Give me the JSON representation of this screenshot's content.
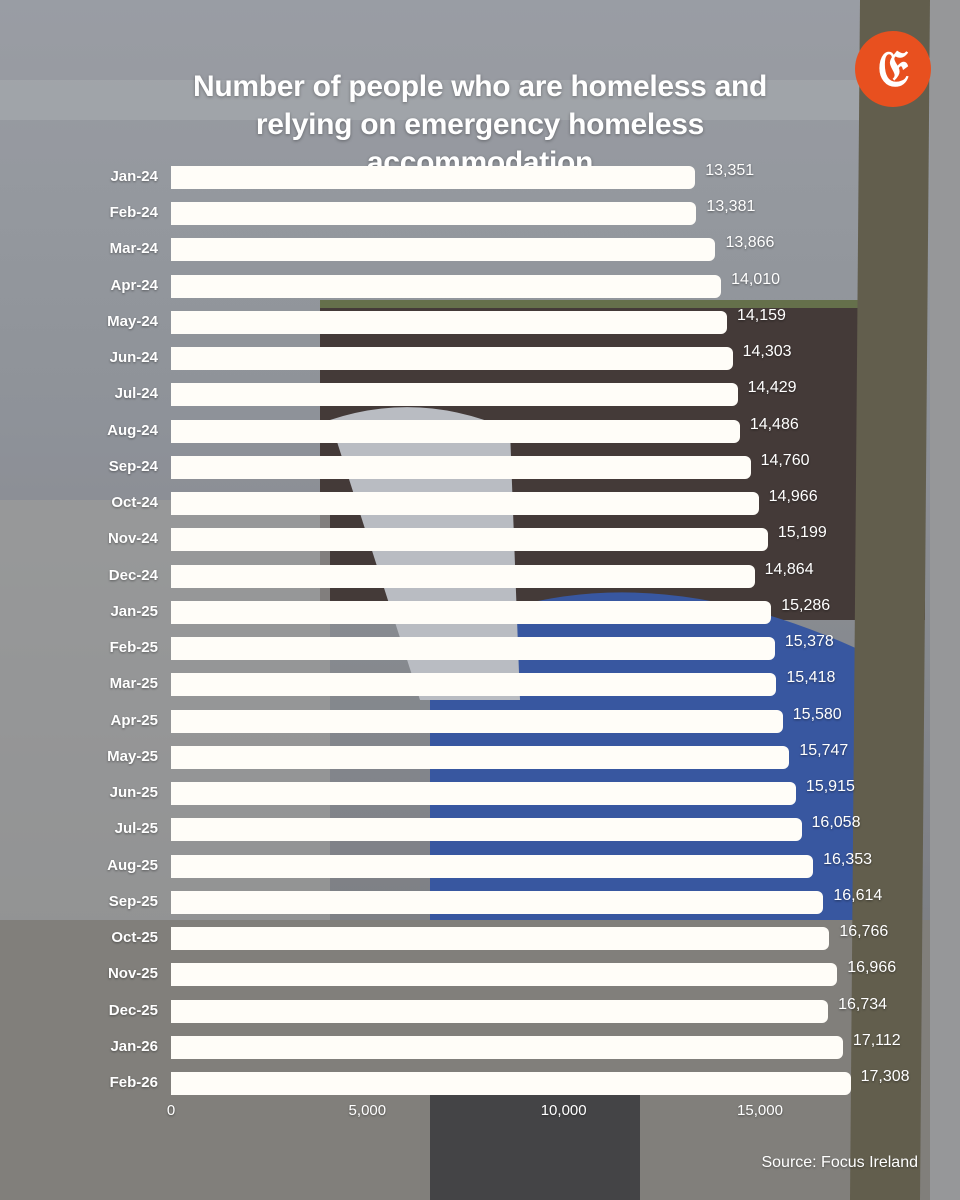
{
  "chart_data": {
    "type": "bar",
    "orientation": "horizontal",
    "title": "Number of people who are homeless and relying on emergency homeless accommodation",
    "categories": [
      "Jan-24",
      "Feb-24",
      "Mar-24",
      "Apr-24",
      "May-24",
      "Jun-24",
      "Jul-24",
      "Aug-24",
      "Sep-24",
      "Oct-24",
      "Nov-24",
      "Dec-24",
      "Jan-25",
      "Feb-25",
      "Mar-25",
      "Apr-25",
      "May-25",
      "Jun-25",
      "Jul-25",
      "Aug-25",
      "Sep-25",
      "Oct-25",
      "Nov-25",
      "Dec-25",
      "Jan-26",
      "Feb-26"
    ],
    "values": [
      13351,
      13381,
      13866,
      14010,
      14159,
      14303,
      14429,
      14486,
      14760,
      14966,
      15199,
      14864,
      15286,
      15378,
      15418,
      15580,
      15747,
      15915,
      16058,
      16353,
      16614,
      16766,
      16966,
      16734,
      17112,
      17308
    ],
    "value_labels": [
      "13,351",
      "13,381",
      "13,866",
      "14,010",
      "14,159",
      "14,303",
      "14,429",
      "14,486",
      "14,760",
      "14,966",
      "15,199",
      "14,864",
      "15,286",
      "15,378",
      "15,418",
      "15,580",
      "15,747",
      "15,915",
      "16,058",
      "16,353",
      "16,614",
      "16,766",
      "16,966",
      "16,734",
      "17,112",
      "17,308"
    ],
    "xticks": [
      0,
      5000,
      10000,
      15000
    ],
    "xtick_labels": [
      "0",
      "5,000",
      "10,000",
      "15,000"
    ],
    "xlim": [
      0,
      17500
    ],
    "grid": false,
    "bar_color": "#fffdf8",
    "source": "Source: Focus Ireland"
  },
  "logo": {
    "text": "E",
    "color": "#e8501f"
  }
}
